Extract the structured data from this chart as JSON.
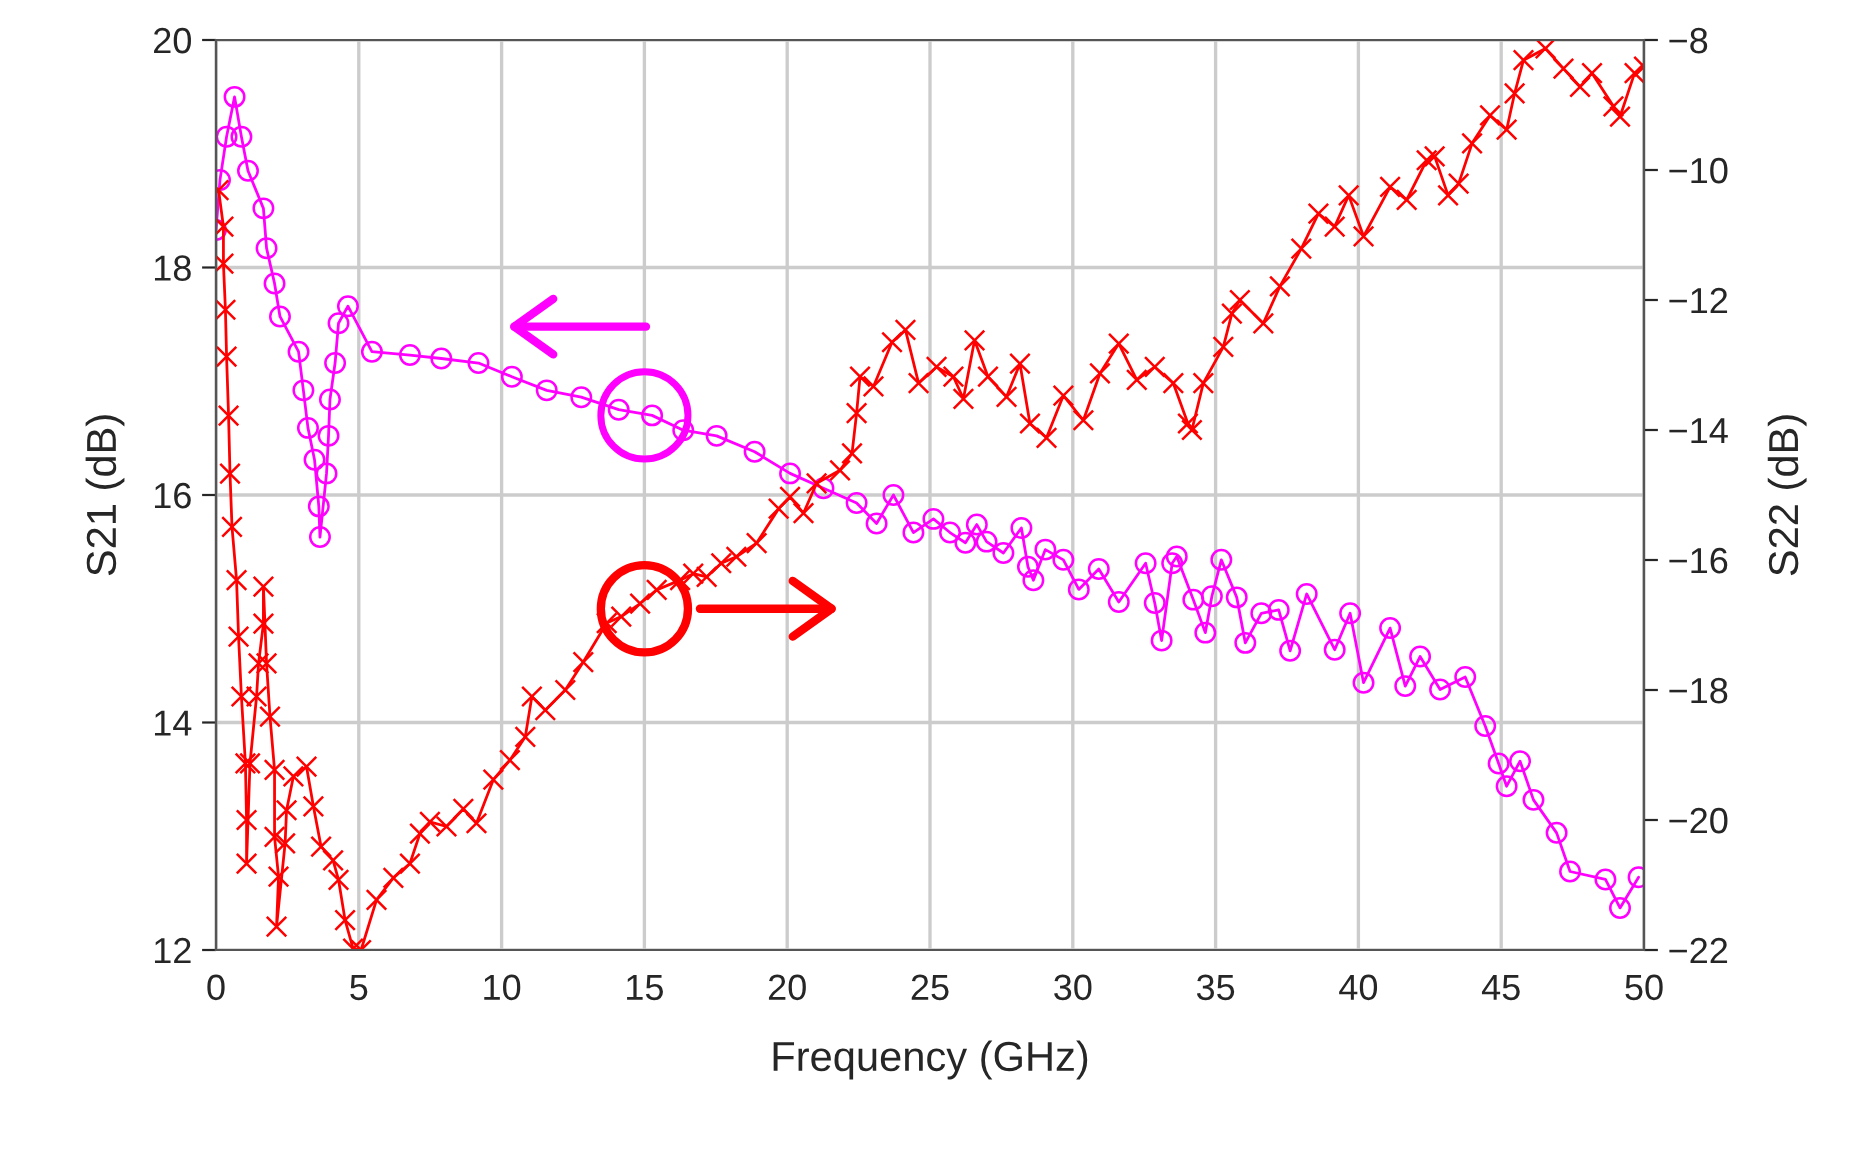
{
  "chart_data": {
    "type": "line",
    "xlabel": "Frequency (GHz)",
    "ylabel": "S21 (dB)",
    "y2label": "S22 (dB)",
    "xlim": [
      0,
      50
    ],
    "xticks": [
      0,
      5,
      10,
      15,
      20,
      25,
      30,
      35,
      40,
      45,
      50
    ],
    "ylim": [
      12,
      20
    ],
    "yticks": [
      12,
      14,
      16,
      18,
      20
    ],
    "y2lim": [
      -22,
      -8
    ],
    "y2ticks": [
      -22,
      -20,
      -18,
      -16,
      -14,
      -12,
      -10,
      -8
    ],
    "grid": true,
    "line_style": "solid",
    "series": [
      {
        "color": "#ff00ff",
        "marker": "circle",
        "axis": "y",
        "x": [
          0,
          0.14,
          0.37,
          0.65,
          0.89,
          1.12,
          1.66,
          1.77,
          2.05,
          2.24,
          2.89,
          3.06,
          3.22,
          3.45,
          3.6,
          3.64,
          3.87,
          3.94,
          3.99,
          4.17,
          4.29,
          4.62,
          5.46,
          6.79,
          7.89,
          9.19,
          10.36,
          11.58,
          12.79,
          14.1,
          15.27,
          16.36,
          17.53,
          18.86,
          20.1,
          21.27,
          22.43,
          23.13,
          23.72,
          24.42,
          25.12,
          25.7,
          26.24,
          26.64,
          26.98,
          27.57,
          28.2,
          28.43,
          28.62,
          29.04,
          29.67,
          30.21,
          30.91,
          31.61,
          32.55,
          32.87,
          33.11,
          33.48,
          33.64,
          34.22,
          34.64,
          34.87,
          35.2,
          35.74,
          36.04,
          36.6,
          37.21,
          37.61,
          38.19,
          39.17,
          39.71,
          40.18,
          41.11,
          41.64,
          42.16,
          42.86,
          43.74,
          44.44,
          44.91,
          45.19,
          45.66,
          46.13,
          46.94,
          47.41,
          48.65,
          49.16,
          49.81
        ],
        "values": [
          18.33,
          18.77,
          19.15,
          19.5,
          19.15,
          18.85,
          18.52,
          18.17,
          17.86,
          17.57,
          17.26,
          16.92,
          16.59,
          16.31,
          15.9,
          15.63,
          16.19,
          16.52,
          16.84,
          17.16,
          17.51,
          17.66,
          17.26,
          17.23,
          17.2,
          17.16,
          17.04,
          16.92,
          16.86,
          16.75,
          16.7,
          16.57,
          16.52,
          16.38,
          16.19,
          16.06,
          15.93,
          15.75,
          16.0,
          15.67,
          15.79,
          15.67,
          15.58,
          15.74,
          15.59,
          15.49,
          15.71,
          15.37,
          15.25,
          15.52,
          15.43,
          15.17,
          15.35,
          15.06,
          15.4,
          15.05,
          14.72,
          15.4,
          15.46,
          15.08,
          14.79,
          15.11,
          15.43,
          15.1,
          14.7,
          14.96,
          14.99,
          14.63,
          15.13,
          14.64,
          14.96,
          14.35,
          14.83,
          14.32,
          14.58,
          14.29,
          14.4,
          13.97,
          13.64,
          13.44,
          13.66,
          13.32,
          13.03,
          12.69,
          12.62,
          12.37,
          12.64
        ]
      },
      {
        "color": "#ff0000",
        "marker": "cross",
        "axis": "y2",
        "x": [
          0.09,
          0.26,
          0.26,
          0.33,
          0.37,
          0.44,
          0.49,
          0.56,
          0.72,
          0.79,
          0.89,
          1.03,
          1.07,
          1.07,
          1.19,
          1.42,
          1.49,
          1.66,
          1.66,
          1.77,
          1.89,
          2.05,
          2.05,
          2.19,
          2.12,
          2.42,
          2.47,
          2.71,
          3.17,
          3.41,
          3.68,
          4.1,
          4.29,
          4.52,
          4.8,
          5.08,
          5.62,
          6.21,
          6.79,
          7.14,
          7.49,
          8.07,
          8.66,
          9.12,
          9.71,
          10.29,
          10.83,
          11.06,
          11.53,
          12.23,
          12.86,
          13.68,
          14.19,
          14.85,
          15.43,
          16.25,
          16.71,
          17.18,
          17.69,
          18.22,
          18.93,
          19.7,
          20.1,
          20.57,
          21.03,
          21.85,
          22.27,
          22.43,
          22.55,
          23.02,
          23.67,
          24.14,
          24.6,
          25.23,
          25.82,
          26.17,
          26.56,
          27.03,
          27.68,
          28.15,
          28.5,
          29.08,
          29.67,
          30.37,
          30.95,
          31.61,
          32.24,
          32.87,
          33.52,
          34.03,
          34.17,
          34.57,
          35.27,
          35.57,
          35.85,
          36.67,
          37.25,
          38.0,
          38.6,
          39.17,
          39.66,
          40.18,
          41.11,
          41.69,
          42.39,
          42.67,
          43.14,
          43.51,
          43.98,
          44.61,
          45.19,
          45.47,
          45.78,
          46.55,
          47.18,
          47.76,
          48.18,
          48.93,
          49.16,
          49.67,
          50
        ],
        "values": [
          -10.31,
          -10.87,
          -11.44,
          -12.15,
          -12.87,
          -13.78,
          -14.67,
          -15.49,
          -16.31,
          -17.18,
          -18.1,
          -19.13,
          -20.0,
          -20.67,
          -19.13,
          -18.1,
          -17.59,
          -16.98,
          -16.41,
          -17.59,
          -18.41,
          -19.23,
          -20.26,
          -20.87,
          -21.64,
          -20.36,
          -19.85,
          -19.33,
          -19.18,
          -19.79,
          -20.41,
          -20.62,
          -20.92,
          -21.54,
          -21.98,
          -22.0,
          -21.23,
          -20.89,
          -20.67,
          -20.21,
          -20.03,
          -20.1,
          -19.83,
          -20.05,
          -19.38,
          -19.08,
          -18.72,
          -18.1,
          -18.31,
          -18.0,
          -17.57,
          -16.97,
          -16.87,
          -16.67,
          -16.46,
          -16.31,
          -16.21,
          -16.26,
          -16.05,
          -15.95,
          -15.74,
          -15.21,
          -15.03,
          -15.28,
          -14.82,
          -14.62,
          -14.36,
          -13.74,
          -13.18,
          -13.33,
          -12.65,
          -12.46,
          -13.28,
          -13.03,
          -13.18,
          -13.52,
          -12.62,
          -13.18,
          -13.49,
          -12.98,
          -13.9,
          -14.12,
          -13.47,
          -13.85,
          -13.13,
          -12.67,
          -13.23,
          -13.03,
          -13.28,
          -13.9,
          -14.0,
          -13.28,
          -12.72,
          -12.21,
          -12.0,
          -12.36,
          -11.79,
          -11.21,
          -10.67,
          -10.87,
          -10.39,
          -11.02,
          -10.26,
          -10.46,
          -9.85,
          -9.79,
          -10.39,
          -10.21,
          -9.59,
          -9.16,
          -9.38,
          -8.82,
          -8.31,
          -8.13,
          -8.44,
          -8.72,
          -8.51,
          -9.02,
          -9.18,
          -8.51,
          -8.41
        ]
      }
    ]
  }
}
